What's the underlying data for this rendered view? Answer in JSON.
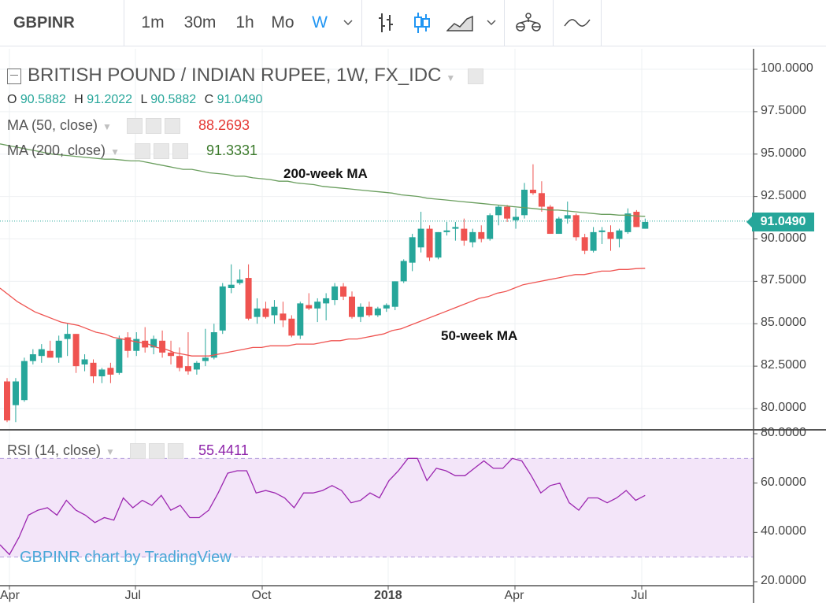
{
  "toolbar": {
    "symbol": "GBPINR",
    "intervals": [
      "1m",
      "30m",
      "1h",
      "Mo",
      "W"
    ],
    "active_interval": "W",
    "icons": [
      "chevron-down-icon",
      "bar-chart-icon",
      "candlestick-icon",
      "area-chart-icon",
      "chevron-down-icon",
      "indicators-icon",
      "compare-icon"
    ]
  },
  "legend": {
    "title": "BRITISH POUND / INDIAN RUPEE, 1W, FX_IDC",
    "open_label": "O",
    "open": "90.5882",
    "high_label": "H",
    "high": "91.2022",
    "low_label": "L",
    "low": "90.5882",
    "close_label": "C",
    "close": "91.0490",
    "ma50_label": "MA (50, close)",
    "ma50_value": "88.2693",
    "ma200_label": "MA (200, close)",
    "ma200_value": "91.3331",
    "rsi_label": "RSI (14, close)",
    "rsi_value": "55.4411"
  },
  "annotations": {
    "ma200": "200-week MA",
    "ma50": "50-week MA"
  },
  "attribution": "GBPINR chart by TradingView",
  "last_price": "91.0490",
  "colors": {
    "up": "#26a69a",
    "down": "#ef5350",
    "ma50": "#ef5350",
    "ma200": "#6a9e5e",
    "rsi": "#9c27b0",
    "rsi_band": "#f3e5f9"
  },
  "chart_data": [
    {
      "type": "candlestick",
      "title": "BRITISH POUND / INDIAN RUPEE, 1W, FX_IDC",
      "ylim": [
        79.0,
        100.5
      ],
      "yticks": [
        "100.0000",
        "97.5000",
        "95.0000",
        "92.5000",
        "90.0000",
        "87.5000",
        "85.0000",
        "82.5000",
        "80.0000"
      ],
      "xticks": [
        "Apr",
        "Jul",
        "Oct",
        "2018",
        "Apr",
        "Jul"
      ],
      "candles": [
        [
          81.6,
          81.8,
          79.2,
          79.3
        ],
        [
          80.2,
          81.8,
          79.2,
          81.6
        ],
        [
          80.5,
          83.0,
          80.4,
          82.8
        ],
        [
          82.8,
          83.5,
          82.6,
          83.2
        ],
        [
          83.1,
          83.8,
          82.7,
          83.5
        ],
        [
          83.4,
          84.0,
          83.0,
          83.0
        ],
        [
          83.0,
          84.3,
          82.7,
          84.0
        ],
        [
          84.1,
          85.0,
          83.1,
          84.4
        ],
        [
          84.4,
          84.4,
          82.1,
          82.5
        ],
        [
          82.6,
          83.2,
          82.2,
          82.9
        ],
        [
          82.7,
          82.9,
          81.5,
          81.9
        ],
        [
          81.9,
          82.4,
          81.5,
          82.3
        ],
        [
          82.4,
          82.7,
          81.5,
          82.0
        ],
        [
          82.1,
          84.3,
          82.0,
          84.1
        ],
        [
          84.2,
          84.5,
          83.0,
          83.4
        ],
        [
          83.4,
          84.5,
          83.1,
          84.1
        ],
        [
          84.0,
          84.8,
          83.3,
          83.6
        ],
        [
          83.6,
          84.3,
          83.2,
          84.1
        ],
        [
          84.0,
          84.6,
          83.0,
          83.3
        ],
        [
          83.3,
          84.0,
          82.6,
          83.1
        ],
        [
          83.1,
          83.6,
          82.2,
          82.4
        ],
        [
          82.5,
          84.5,
          82.0,
          82.2
        ],
        [
          82.3,
          82.8,
          82.0,
          82.7
        ],
        [
          82.8,
          84.7,
          82.5,
          83.0
        ],
        [
          83.0,
          85.0,
          82.9,
          84.5
        ],
        [
          84.6,
          87.4,
          84.4,
          87.2
        ],
        [
          87.1,
          88.5,
          86.8,
          87.3
        ],
        [
          87.4,
          88.2,
          87.3,
          87.6
        ],
        [
          87.7,
          88.5,
          85.2,
          85.3
        ],
        [
          85.4,
          86.5,
          85.0,
          85.9
        ],
        [
          85.9,
          86.3,
          85.3,
          85.4
        ],
        [
          85.5,
          86.4,
          85.0,
          86.0
        ],
        [
          85.6,
          86.3,
          84.8,
          85.2
        ],
        [
          85.3,
          85.5,
          84.2,
          84.3
        ],
        [
          84.3,
          86.3,
          84.1,
          86.2
        ],
        [
          86.1,
          86.8,
          85.8,
          85.9
        ],
        [
          85.9,
          86.5,
          85.1,
          86.3
        ],
        [
          86.2,
          86.8,
          85.2,
          86.5
        ],
        [
          86.4,
          87.4,
          86.1,
          87.2
        ],
        [
          87.2,
          87.4,
          86.4,
          86.6
        ],
        [
          86.6,
          86.9,
          85.3,
          85.4
        ],
        [
          85.4,
          86.2,
          85.1,
          86.0
        ],
        [
          86.0,
          86.3,
          85.4,
          85.5
        ],
        [
          85.5,
          86.0,
          85.4,
          85.9
        ],
        [
          85.9,
          86.2,
          85.7,
          86.1
        ],
        [
          86.0,
          87.5,
          85.8,
          87.5
        ],
        [
          87.5,
          88.8,
          87.4,
          88.7
        ],
        [
          88.6,
          90.3,
          88.1,
          90.1
        ],
        [
          89.5,
          91.6,
          89.2,
          90.6
        ],
        [
          90.6,
          90.8,
          88.7,
          88.9
        ],
        [
          88.9,
          90.4,
          88.8,
          90.4
        ],
        [
          90.4,
          91.0,
          90.2,
          90.5
        ],
        [
          90.6,
          91.0,
          89.9,
          90.7
        ],
        [
          90.6,
          91.2,
          89.6,
          89.9
        ],
        [
          89.8,
          90.6,
          89.5,
          90.4
        ],
        [
          90.4,
          90.8,
          89.8,
          90.0
        ],
        [
          90.0,
          91.5,
          89.9,
          91.4
        ],
        [
          91.4,
          92.0,
          90.8,
          91.9
        ],
        [
          91.9,
          92.0,
          91.0,
          91.2
        ],
        [
          91.1,
          91.8,
          90.6,
          91.3
        ],
        [
          91.4,
          93.3,
          91.2,
          92.9
        ],
        [
          92.9,
          94.4,
          92.6,
          92.7
        ],
        [
          92.7,
          93.4,
          91.6,
          91.9
        ],
        [
          91.9,
          92.0,
          90.3,
          90.3
        ],
        [
          90.3,
          91.3,
          90.3,
          91.2
        ],
        [
          91.2,
          92.2,
          90.9,
          91.4
        ],
        [
          91.4,
          91.5,
          89.9,
          90.1
        ],
        [
          90.1,
          90.3,
          89.1,
          89.3
        ],
        [
          89.3,
          90.7,
          89.2,
          90.4
        ],
        [
          90.4,
          90.7,
          89.7,
          90.5
        ],
        [
          90.4,
          90.8,
          89.3,
          90.0
        ],
        [
          90.0,
          90.6,
          89.5,
          90.5
        ],
        [
          90.4,
          91.8,
          90.3,
          91.5
        ],
        [
          91.6,
          91.7,
          90.7,
          90.7
        ],
        [
          90.6,
          91.2,
          90.6,
          91.0
        ]
      ],
      "series": [
        {
          "name": "MA (50, close)",
          "values": [
            87.1,
            86.7,
            86.3,
            86.0,
            85.7,
            85.5,
            85.3,
            85.1,
            85.0,
            84.9,
            84.7,
            84.5,
            84.4,
            84.2,
            84.1,
            84.0,
            83.9,
            83.8,
            83.6,
            83.5,
            83.3,
            83.2,
            83.1,
            83.1,
            83.1,
            83.2,
            83.3,
            83.4,
            83.5,
            83.6,
            83.6,
            83.7,
            83.7,
            83.7,
            83.8,
            83.8,
            83.8,
            83.9,
            84.0,
            84.0,
            84.1,
            84.1,
            84.2,
            84.3,
            84.4,
            84.6,
            84.7,
            84.9,
            85.1,
            85.3,
            85.5,
            85.7,
            85.9,
            86.1,
            86.3,
            86.5,
            86.6,
            86.8,
            86.9,
            87.1,
            87.3,
            87.4,
            87.5,
            87.6,
            87.7,
            87.8,
            87.9,
            87.9,
            88.0,
            88.1,
            88.1,
            88.2,
            88.2,
            88.25,
            88.2693
          ]
        },
        {
          "name": "MA (200, close)",
          "values": [
            95.6,
            95.5,
            95.4,
            95.3,
            95.2,
            95.1,
            95.0,
            94.95,
            94.9,
            94.85,
            94.8,
            94.75,
            94.7,
            94.7,
            94.65,
            94.6,
            94.6,
            94.5,
            94.4,
            94.3,
            94.2,
            94.1,
            94.1,
            94.0,
            93.9,
            93.85,
            93.8,
            93.7,
            93.7,
            93.6,
            93.55,
            93.5,
            93.4,
            93.4,
            93.3,
            93.25,
            93.2,
            93.1,
            93.05,
            93.0,
            92.95,
            92.9,
            92.85,
            92.8,
            92.75,
            92.7,
            92.6,
            92.55,
            92.5,
            92.4,
            92.35,
            92.3,
            92.25,
            92.2,
            92.15,
            92.1,
            92.05,
            92.0,
            91.95,
            91.9,
            91.85,
            91.8,
            91.75,
            91.7,
            91.7,
            91.65,
            91.6,
            91.55,
            91.5,
            91.45,
            91.45,
            91.4,
            91.4,
            91.35,
            91.3331
          ]
        }
      ]
    },
    {
      "type": "line",
      "title": "RSI (14, close)",
      "ylim": [
        20,
        80
      ],
      "yticks": [
        "80.0000",
        "60.0000",
        "40.0000",
        "20.0000"
      ],
      "bands": [
        30,
        70
      ],
      "series": [
        {
          "name": "RSI (14, close)",
          "values": [
            35,
            31,
            38,
            47,
            49,
            50,
            47,
            53,
            49,
            47,
            44,
            46,
            45,
            54,
            50,
            53,
            51,
            55,
            49,
            51,
            46,
            46,
            49,
            56,
            64,
            65,
            65,
            56,
            57,
            56,
            54,
            50,
            56,
            56,
            57,
            59,
            57,
            52,
            53,
            56,
            54,
            61,
            65,
            70,
            70,
            61,
            66,
            65,
            63,
            63,
            66,
            69,
            66,
            66,
            70,
            69,
            63,
            56,
            59,
            60,
            52,
            49,
            54,
            54,
            52,
            54,
            57,
            53,
            55
          ]
        }
      ]
    }
  ]
}
